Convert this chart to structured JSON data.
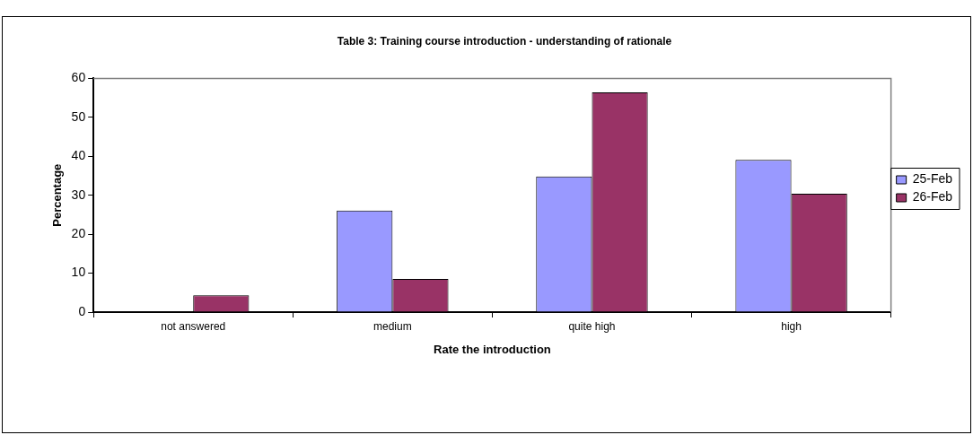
{
  "chart_data": {
    "type": "bar",
    "title": "Table 3: Training course introduction - understanding of rationale",
    "xlabel": "Rate the introduction",
    "ylabel": "Percentage",
    "categories": [
      "not answered",
      "medium",
      "quite high",
      "high"
    ],
    "series": [
      {
        "name": "25-Feb",
        "color": "#9999ff",
        "values": [
          0,
          26.1,
          34.8,
          39.1
        ]
      },
      {
        "name": "26-Feb",
        "color": "#993366",
        "values": [
          4.3,
          8.5,
          56.4,
          30.4
        ]
      }
    ],
    "ylim": [
      0,
      60
    ],
    "yticks": [
      0,
      10,
      20,
      30,
      40,
      50,
      60
    ],
    "grid": false,
    "legend": "right"
  }
}
